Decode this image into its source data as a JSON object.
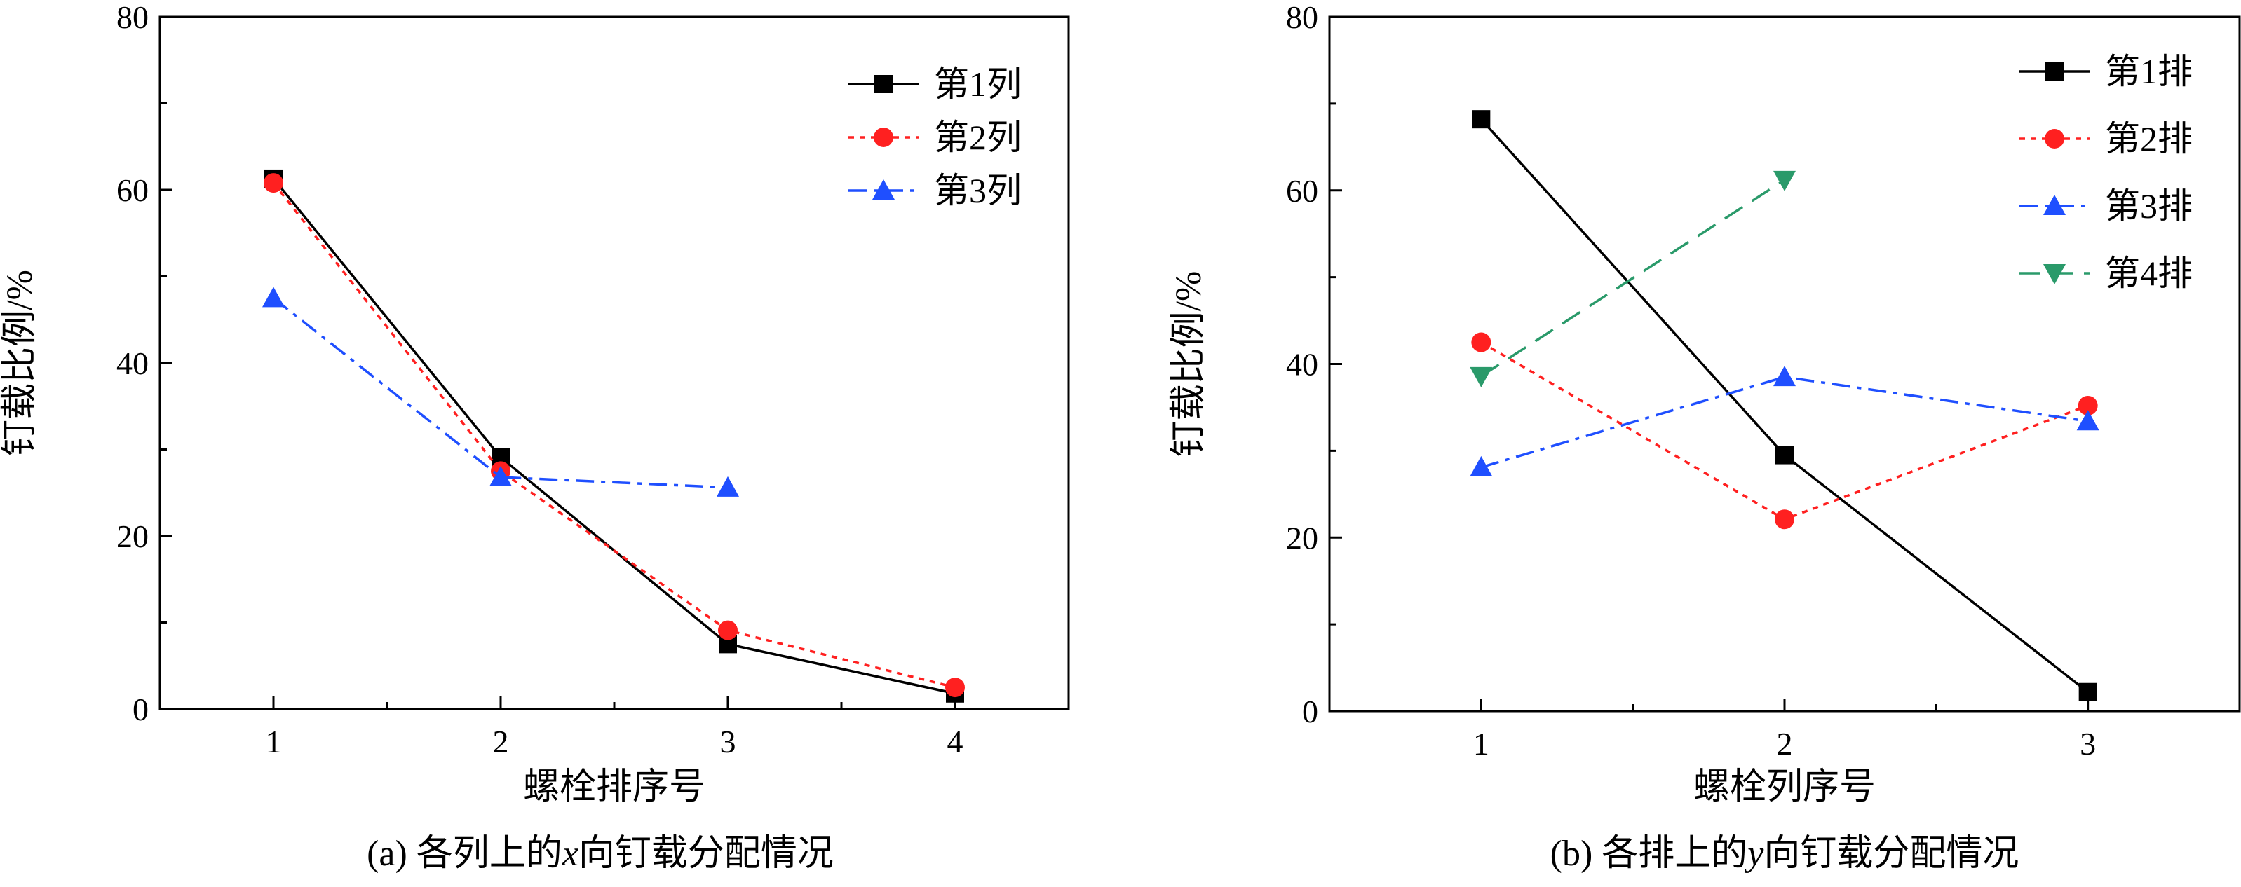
{
  "chart_data": [
    {
      "type": "line",
      "caption_prefix": "(a) 各列上的",
      "caption_var": "x",
      "caption_suffix": "向钉载分配情况",
      "xlabel": "螺栓排序号",
      "ylabel": "钉载比例/%",
      "x_ticks": [
        "1",
        "2",
        "3",
        "4"
      ],
      "y_ticks": [
        "0",
        "20",
        "40",
        "60",
        "80"
      ],
      "xlim": [
        0.5,
        4.5
      ],
      "ylim": [
        0,
        80
      ],
      "legend_position": "top-right",
      "series": [
        {
          "name": "第1列",
          "x": [
            1,
            2,
            3,
            4
          ],
          "values": [
            61.3,
            29.1,
            7.5,
            1.8
          ],
          "color": "#000000",
          "marker": "square",
          "dash": "solid"
        },
        {
          "name": "第2列",
          "x": [
            1,
            2,
            3,
            4
          ],
          "values": [
            60.8,
            27.5,
            9.1,
            2.5
          ],
          "color": "#ff2020",
          "marker": "circle",
          "dash": "dot"
        },
        {
          "name": "第3列",
          "x": [
            1,
            2,
            3
          ],
          "values": [
            47.5,
            26.8,
            25.6
          ],
          "color": "#1f4fff",
          "marker": "triangle-up",
          "dash": "dashdot"
        }
      ]
    },
    {
      "type": "line",
      "caption_prefix": "(b) 各排上的",
      "caption_var": "y",
      "caption_suffix": "向钉载分配情况",
      "xlabel": "螺栓列序号",
      "ylabel": "钉载比例/%",
      "x_ticks": [
        "1",
        "2",
        "3"
      ],
      "y_ticks": [
        "0",
        "20",
        "40",
        "60",
        "80"
      ],
      "xlim": [
        0.5,
        3.5
      ],
      "ylim": [
        0,
        80
      ],
      "legend_position": "top-right",
      "series": [
        {
          "name": "第1排",
          "x": [
            1,
            2,
            3
          ],
          "values": [
            68.2,
            29.5,
            2.2
          ],
          "color": "#000000",
          "marker": "square",
          "dash": "solid"
        },
        {
          "name": "第2排",
          "x": [
            1,
            2,
            3
          ],
          "values": [
            42.5,
            22.1,
            35.2
          ],
          "color": "#ff2020",
          "marker": "circle",
          "dash": "dot"
        },
        {
          "name": "第3排",
          "x": [
            1,
            2,
            3
          ],
          "values": [
            28.1,
            38.5,
            33.4
          ],
          "color": "#1f4fff",
          "marker": "triangle-up",
          "dash": "dashdot"
        },
        {
          "name": "第4排",
          "x": [
            1,
            2
          ],
          "values": [
            38.6,
            61.2
          ],
          "color": "#2a9a6a",
          "marker": "triangle-down",
          "dash": "dash"
        }
      ]
    }
  ]
}
